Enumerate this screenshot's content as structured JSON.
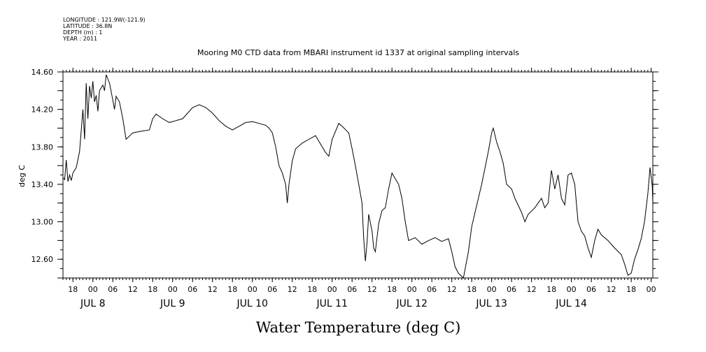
{
  "header": {
    "meta_lines": [
      "LONGITUDE : 121.9W(-121.9)",
      "LATITUDE : 36.8N",
      "DEPTH (m) : 1",
      "YEAR : 2011"
    ],
    "title": "Mooring M0 CTD data from MBARI instrument id 1337 at original sampling intervals"
  },
  "chart_data": {
    "type": "line",
    "title": "Mooring M0 CTD data from MBARI instrument id 1337 at original sampling intervals",
    "xlabel": "Water Temperature (deg C)",
    "ylabel": "deg C",
    "xlim": [
      "2011-07-07T15:00",
      "2011-07-15T00:30"
    ],
    "ylim": [
      12.4,
      14.6
    ],
    "yticks": [
      12.6,
      13.0,
      13.4,
      13.8,
      14.2,
      14.6
    ],
    "ytick_labels": [
      "12.60",
      "13.00",
      "13.40",
      "13.80",
      "14.20",
      "14.60"
    ],
    "hour_tick_labels": [
      "18",
      "00",
      "06",
      "12",
      "18",
      "00",
      "06",
      "12",
      "18",
      "00",
      "06",
      "12",
      "18",
      "00",
      "06",
      "12",
      "18",
      "00",
      "06",
      "12",
      "18",
      "00",
      "06",
      "12",
      "18",
      "00",
      "06",
      "12",
      "18",
      "00"
    ],
    "day_labels": [
      "JUL  8",
      "JUL  9",
      "JUL 10",
      "JUL 11",
      "JUL 12",
      "JUL 13",
      "JUL 14"
    ],
    "grid": false,
    "legend": "none",
    "series": [
      {
        "values": [
          [
            "2011-07-07T15:00",
            13.47
          ],
          [
            "2011-07-07T15:30",
            13.45
          ],
          [
            "2011-07-07T16:00",
            13.66
          ],
          [
            "2011-07-07T16:30",
            13.43
          ],
          [
            "2011-07-07T17:00",
            13.5
          ],
          [
            "2011-07-07T17:30",
            13.44
          ],
          [
            "2011-07-07T18:00",
            13.52
          ],
          [
            "2011-07-07T19:00",
            13.58
          ],
          [
            "2011-07-07T20:00",
            13.75
          ],
          [
            "2011-07-07T21:00",
            14.2
          ],
          [
            "2011-07-07T21:30",
            13.88
          ],
          [
            "2011-07-07T22:00",
            14.48
          ],
          [
            "2011-07-07T22:30",
            14.1
          ],
          [
            "2011-07-07T23:00",
            14.45
          ],
          [
            "2011-07-07T23:30",
            14.32
          ],
          [
            "2011-07-08T00:00",
            14.5
          ],
          [
            "2011-07-08T00:30",
            14.28
          ],
          [
            "2011-07-08T01:00",
            14.35
          ],
          [
            "2011-07-08T01:30",
            14.18
          ],
          [
            "2011-07-08T02:00",
            14.4
          ],
          [
            "2011-07-08T03:00",
            14.46
          ],
          [
            "2011-07-08T03:30",
            14.4
          ],
          [
            "2011-07-08T04:00",
            14.57
          ],
          [
            "2011-07-08T05:00",
            14.48
          ],
          [
            "2011-07-08T06:00",
            14.3
          ],
          [
            "2011-07-08T06:30",
            14.2
          ],
          [
            "2011-07-08T07:00",
            14.34
          ],
          [
            "2011-07-08T08:00",
            14.28
          ],
          [
            "2011-07-08T09:00",
            14.1
          ],
          [
            "2011-07-08T10:00",
            13.88
          ],
          [
            "2011-07-08T12:00",
            13.95
          ],
          [
            "2011-07-08T15:00",
            13.97
          ],
          [
            "2011-07-08T17:00",
            13.98
          ],
          [
            "2011-07-08T18:00",
            14.1
          ],
          [
            "2011-07-08T19:00",
            14.15
          ],
          [
            "2011-07-08T21:00",
            14.1
          ],
          [
            "2011-07-08T23:00",
            14.06
          ],
          [
            "2011-07-09T01:00",
            14.08
          ],
          [
            "2011-07-09T03:00",
            14.1
          ],
          [
            "2011-07-09T06:00",
            14.22
          ],
          [
            "2011-07-09T08:00",
            14.25
          ],
          [
            "2011-07-09T10:00",
            14.22
          ],
          [
            "2011-07-09T12:00",
            14.16
          ],
          [
            "2011-07-09T14:00",
            14.08
          ],
          [
            "2011-07-09T16:00",
            14.02
          ],
          [
            "2011-07-09T18:00",
            13.98
          ],
          [
            "2011-07-09T20:00",
            14.02
          ],
          [
            "2011-07-09T22:00",
            14.06
          ],
          [
            "2011-07-10T00:00",
            14.07
          ],
          [
            "2011-07-10T02:00",
            14.05
          ],
          [
            "2011-07-10T04:00",
            14.03
          ],
          [
            "2011-07-10T05:00",
            14.0
          ],
          [
            "2011-07-10T06:00",
            13.95
          ],
          [
            "2011-07-10T07:00",
            13.8
          ],
          [
            "2011-07-10T08:00",
            13.6
          ],
          [
            "2011-07-10T09:00",
            13.52
          ],
          [
            "2011-07-10T10:00",
            13.4
          ],
          [
            "2011-07-10T10:30",
            13.2
          ],
          [
            "2011-07-10T11:00",
            13.4
          ],
          [
            "2011-07-10T12:00",
            13.65
          ],
          [
            "2011-07-10T13:00",
            13.78
          ],
          [
            "2011-07-10T15:00",
            13.84
          ],
          [
            "2011-07-10T17:00",
            13.88
          ],
          [
            "2011-07-10T19:00",
            13.92
          ],
          [
            "2011-07-10T20:00",
            13.86
          ],
          [
            "2011-07-10T22:00",
            13.74
          ],
          [
            "2011-07-10T23:00",
            13.7
          ],
          [
            "2011-07-11T00:00",
            13.88
          ],
          [
            "2011-07-11T02:00",
            14.05
          ],
          [
            "2011-07-11T03:00",
            14.02
          ],
          [
            "2011-07-11T05:00",
            13.95
          ],
          [
            "2011-07-11T06:00",
            13.78
          ],
          [
            "2011-07-11T07:00",
            13.6
          ],
          [
            "2011-07-11T08:00",
            13.4
          ],
          [
            "2011-07-11T09:00",
            13.2
          ],
          [
            "2011-07-11T09:30",
            12.82
          ],
          [
            "2011-07-11T10:00",
            12.58
          ],
          [
            "2011-07-11T10:30",
            12.78
          ],
          [
            "2011-07-11T11:00",
            13.08
          ],
          [
            "2011-07-11T12:00",
            12.9
          ],
          [
            "2011-07-11T12:30",
            12.72
          ],
          [
            "2011-07-11T13:00",
            12.68
          ],
          [
            "2011-07-11T14:00",
            12.98
          ],
          [
            "2011-07-11T15:00",
            13.12
          ],
          [
            "2011-07-11T16:00",
            13.15
          ],
          [
            "2011-07-11T17:00",
            13.35
          ],
          [
            "2011-07-11T18:00",
            13.52
          ],
          [
            "2011-07-11T19:00",
            13.46
          ],
          [
            "2011-07-11T20:00",
            13.4
          ],
          [
            "2011-07-11T21:00",
            13.25
          ],
          [
            "2011-07-11T22:00",
            13.0
          ],
          [
            "2011-07-11T23:00",
            12.8
          ],
          [
            "2011-07-12T01:00",
            12.83
          ],
          [
            "2011-07-12T03:00",
            12.76
          ],
          [
            "2011-07-12T05:00",
            12.8
          ],
          [
            "2011-07-12T07:00",
            12.83
          ],
          [
            "2011-07-12T09:00",
            12.79
          ],
          [
            "2011-07-12T11:00",
            12.82
          ],
          [
            "2011-07-12T12:00",
            12.68
          ],
          [
            "2011-07-12T13:00",
            12.52
          ],
          [
            "2011-07-12T14:00",
            12.45
          ],
          [
            "2011-07-12T15:30",
            12.4
          ],
          [
            "2011-07-12T17:00",
            12.68
          ],
          [
            "2011-07-12T18:00",
            12.95
          ],
          [
            "2011-07-12T19:00",
            13.1
          ],
          [
            "2011-07-12T21:00",
            13.4
          ],
          [
            "2011-07-12T23:00",
            13.75
          ],
          [
            "2011-07-13T00:00",
            13.95
          ],
          [
            "2011-07-13T00:30",
            14.0
          ],
          [
            "2011-07-13T01:30",
            13.85
          ],
          [
            "2011-07-13T02:30",
            13.75
          ],
          [
            "2011-07-13T03:30",
            13.62
          ],
          [
            "2011-07-13T04:30",
            13.4
          ],
          [
            "2011-07-13T06:00",
            13.35
          ],
          [
            "2011-07-13T07:00",
            13.25
          ],
          [
            "2011-07-13T09:00",
            13.1
          ],
          [
            "2011-07-13T10:00",
            13.0
          ],
          [
            "2011-07-13T11:00",
            13.08
          ],
          [
            "2011-07-13T13:00",
            13.15
          ],
          [
            "2011-07-13T14:00",
            13.2
          ],
          [
            "2011-07-13T15:00",
            13.25
          ],
          [
            "2011-07-13T16:00",
            13.15
          ],
          [
            "2011-07-13T17:00",
            13.2
          ],
          [
            "2011-07-13T18:00",
            13.55
          ],
          [
            "2011-07-13T19:00",
            13.35
          ],
          [
            "2011-07-13T20:00",
            13.5
          ],
          [
            "2011-07-13T21:00",
            13.25
          ],
          [
            "2011-07-13T22:00",
            13.18
          ],
          [
            "2011-07-13T23:00",
            13.5
          ],
          [
            "2011-07-14T00:00",
            13.52
          ],
          [
            "2011-07-14T01:00",
            13.4
          ],
          [
            "2011-07-14T02:00",
            13.0
          ],
          [
            "2011-07-14T03:00",
            12.9
          ],
          [
            "2011-07-14T04:00",
            12.85
          ],
          [
            "2011-07-14T05:00",
            12.72
          ],
          [
            "2011-07-14T06:00",
            12.62
          ],
          [
            "2011-07-14T07:00",
            12.8
          ],
          [
            "2011-07-14T08:00",
            12.92
          ],
          [
            "2011-07-14T09:00",
            12.86
          ],
          [
            "2011-07-14T11:00",
            12.8
          ],
          [
            "2011-07-14T13:00",
            12.72
          ],
          [
            "2011-07-14T15:00",
            12.65
          ],
          [
            "2011-07-14T16:00",
            12.55
          ],
          [
            "2011-07-14T17:00",
            12.43
          ],
          [
            "2011-07-14T18:00",
            12.45
          ],
          [
            "2011-07-14T19:00",
            12.6
          ],
          [
            "2011-07-14T20:00",
            12.7
          ],
          [
            "2011-07-14T21:00",
            12.82
          ],
          [
            "2011-07-14T22:00",
            13.0
          ],
          [
            "2011-07-14T23:00",
            13.3
          ],
          [
            "2011-07-14T23:40",
            13.58
          ],
          [
            "2011-07-15T00:20",
            13.38
          ],
          [
            "2011-07-15T00:30",
            13.2
          ]
        ]
      }
    ]
  }
}
